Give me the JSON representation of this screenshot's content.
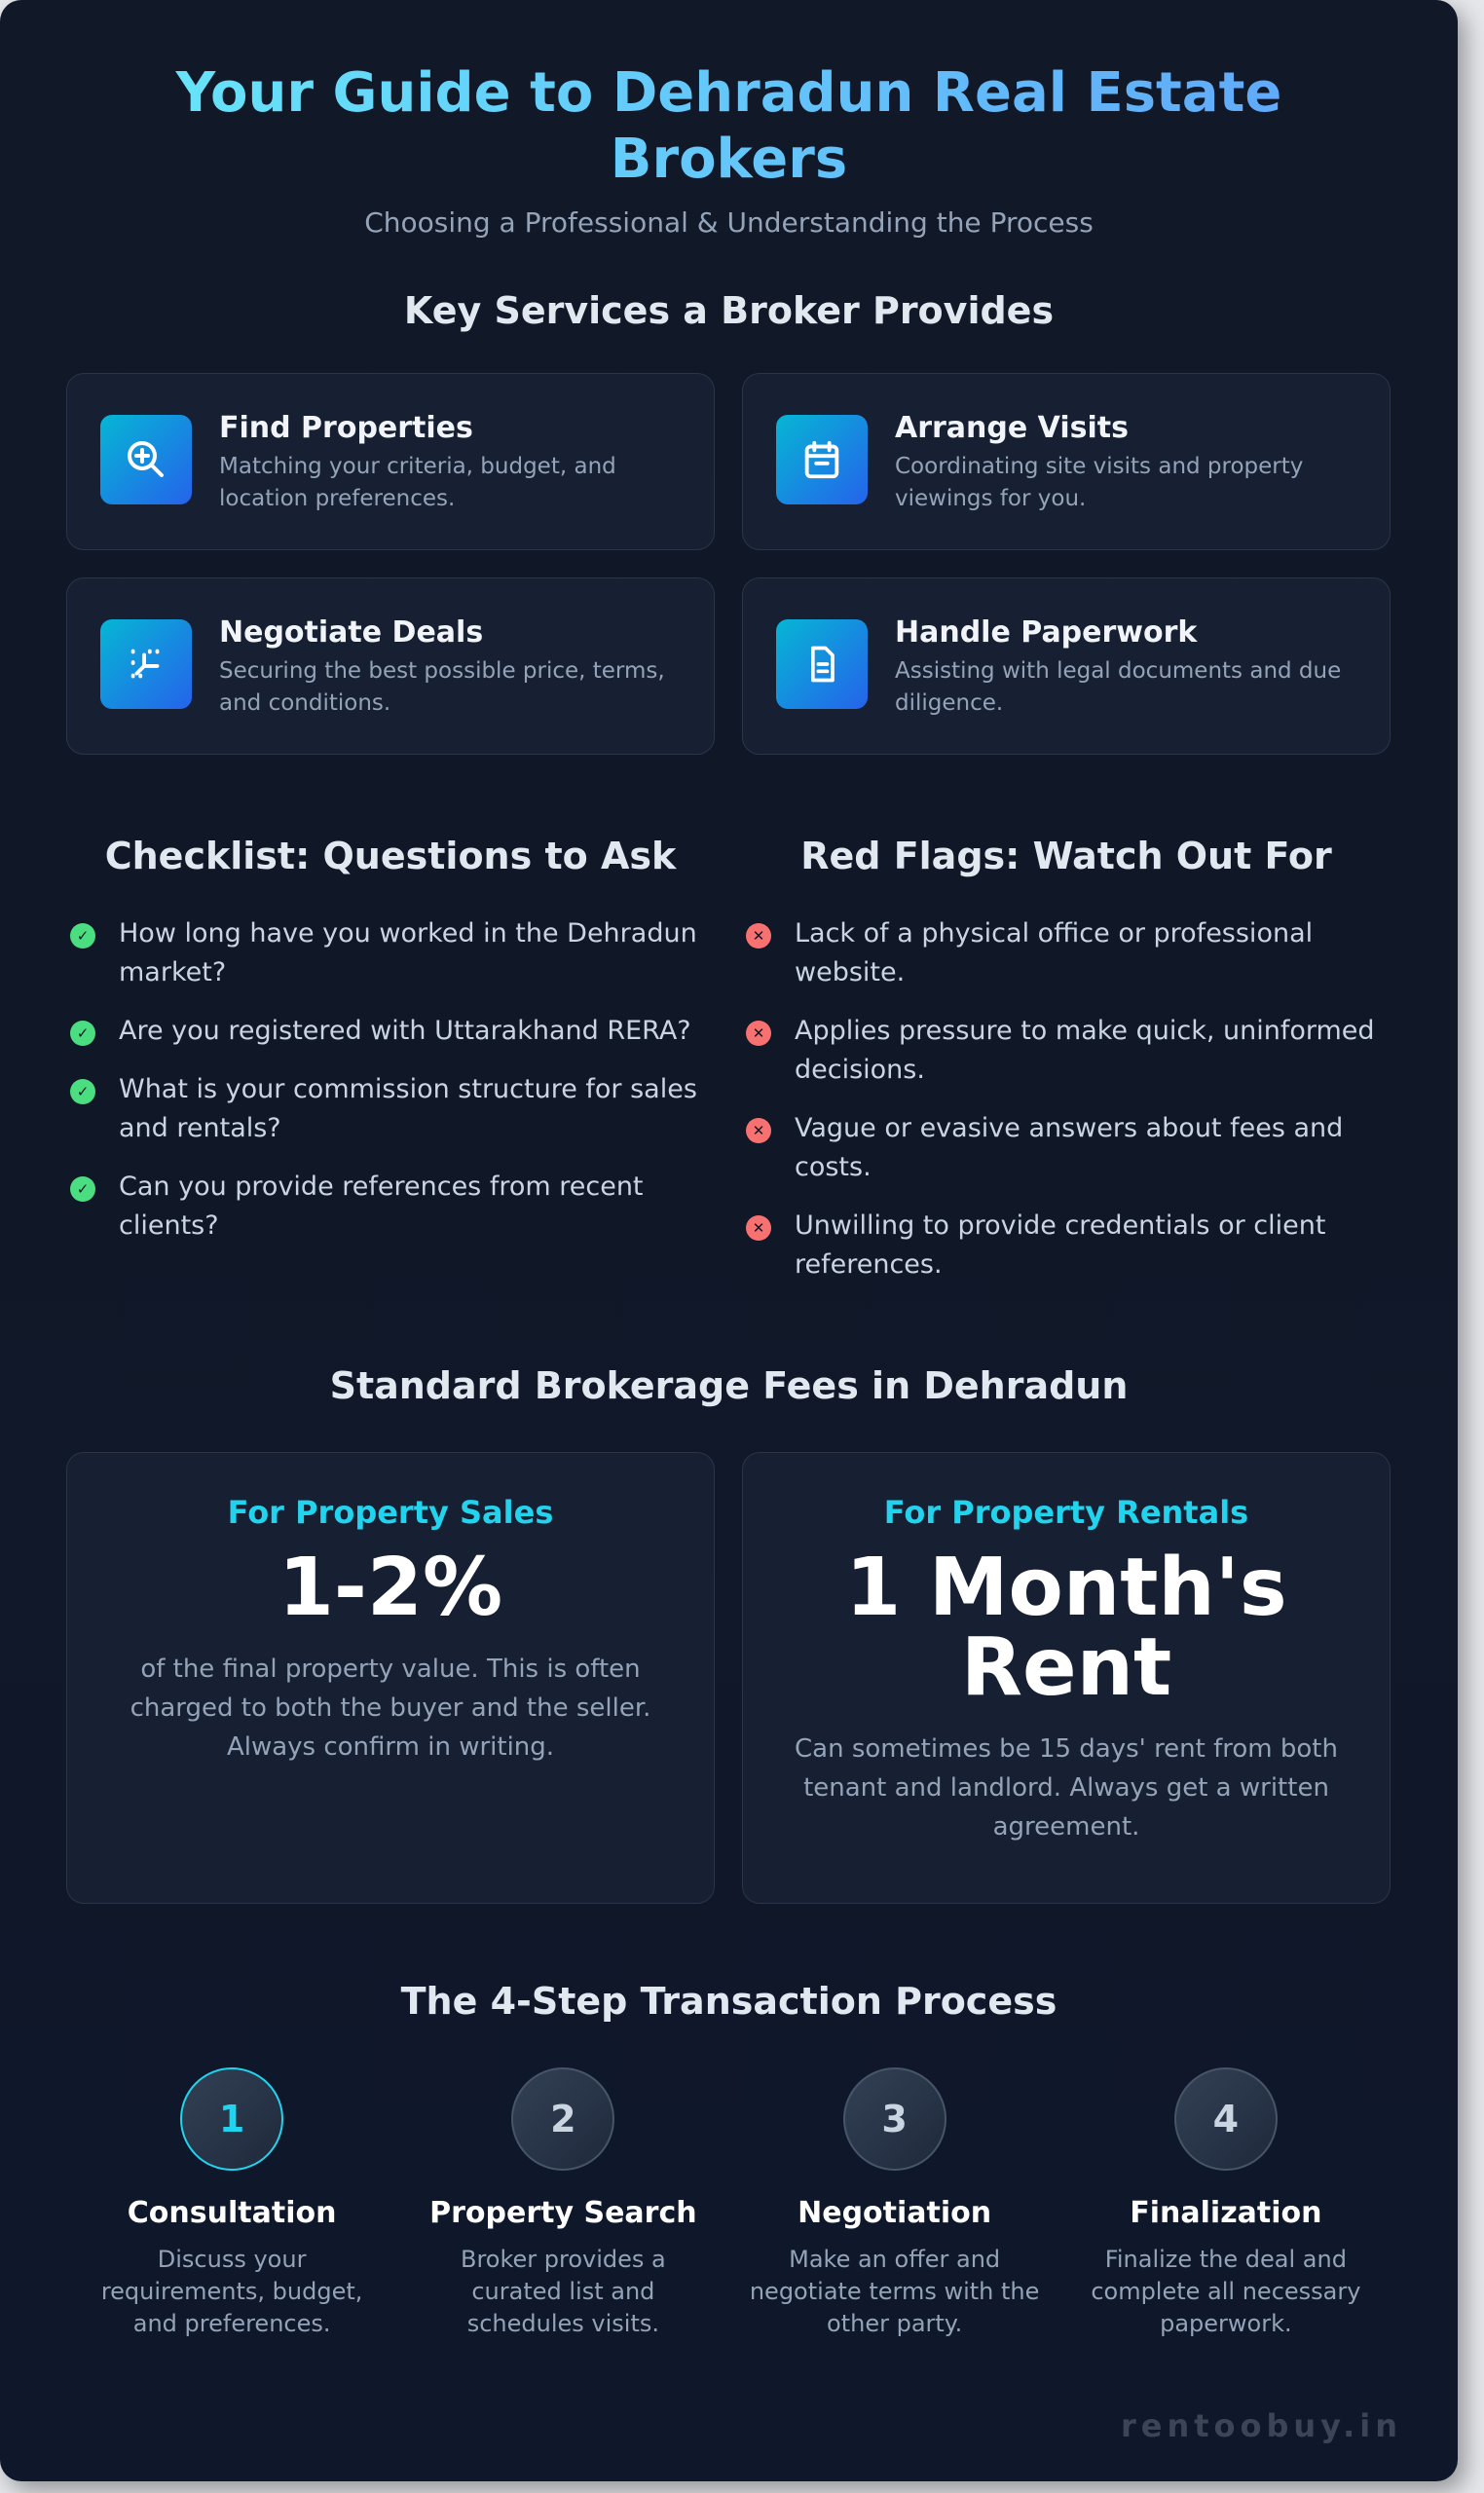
{
  "header": {
    "title": "Your Guide to Dehradun Real Estate Brokers",
    "subtitle": "Choosing a Professional & Understanding the Process"
  },
  "services": {
    "heading": "Key Services a Broker Provides",
    "items": [
      {
        "icon": "search-plus-icon",
        "title": "Find Properties",
        "desc": "Matching your criteria, budget, and location preferences."
      },
      {
        "icon": "calendar-icon",
        "title": "Arrange Visits",
        "desc": "Coordinating site visits and property viewings for you."
      },
      {
        "icon": "handshake-icon",
        "title": "Negotiate Deals",
        "desc": "Securing the best possible price, terms, and conditions."
      },
      {
        "icon": "document-icon",
        "title": "Handle Paperwork",
        "desc": "Assisting with legal documents and due diligence."
      }
    ]
  },
  "checklist": {
    "heading": "Checklist: Questions to Ask",
    "items": [
      "How long have you worked in the Dehradun market?",
      "Are you registered with Uttarakhand RERA?",
      "What is your commission structure for sales and rentals?",
      "Can you provide references from recent clients?"
    ]
  },
  "red_flags": {
    "heading": "Red Flags: Watch Out For",
    "items": [
      "Lack of a physical office or professional website.",
      "Applies pressure to make quick, uninformed decisions.",
      "Vague or evasive answers about fees and costs.",
      "Unwilling to provide credentials or client references."
    ]
  },
  "fees": {
    "heading": "Standard Brokerage Fees in Dehradun",
    "cards": [
      {
        "label": "For Property Sales",
        "value": "1-2%",
        "desc": "of the final property value. This is often charged to both the buyer and the seller. Always confirm in writing."
      },
      {
        "label": "For Property Rentals",
        "value": "1 Month's Rent",
        "desc": "Can sometimes be 15 days' rent from both tenant and landlord. Always get a written agreement."
      }
    ]
  },
  "process": {
    "heading": "The 4-Step Transaction Process",
    "steps": [
      {
        "num": "1",
        "title": "Consultation",
        "desc": "Discuss your requirements, budget, and preferences."
      },
      {
        "num": "2",
        "title": "Property Search",
        "desc": "Broker provides a curated list and schedules visits."
      },
      {
        "num": "3",
        "title": "Negotiation",
        "desc": "Make an offer and negotiate terms with the other party."
      },
      {
        "num": "4",
        "title": "Finalization",
        "desc": "Finalize the deal and complete all necessary paperwork."
      }
    ]
  },
  "watermark": "rentoobuy.in",
  "colors": {
    "accent": "#22d3ee",
    "check": "#4ade80",
    "flag": "#f87171",
    "background": "#0f172a"
  }
}
